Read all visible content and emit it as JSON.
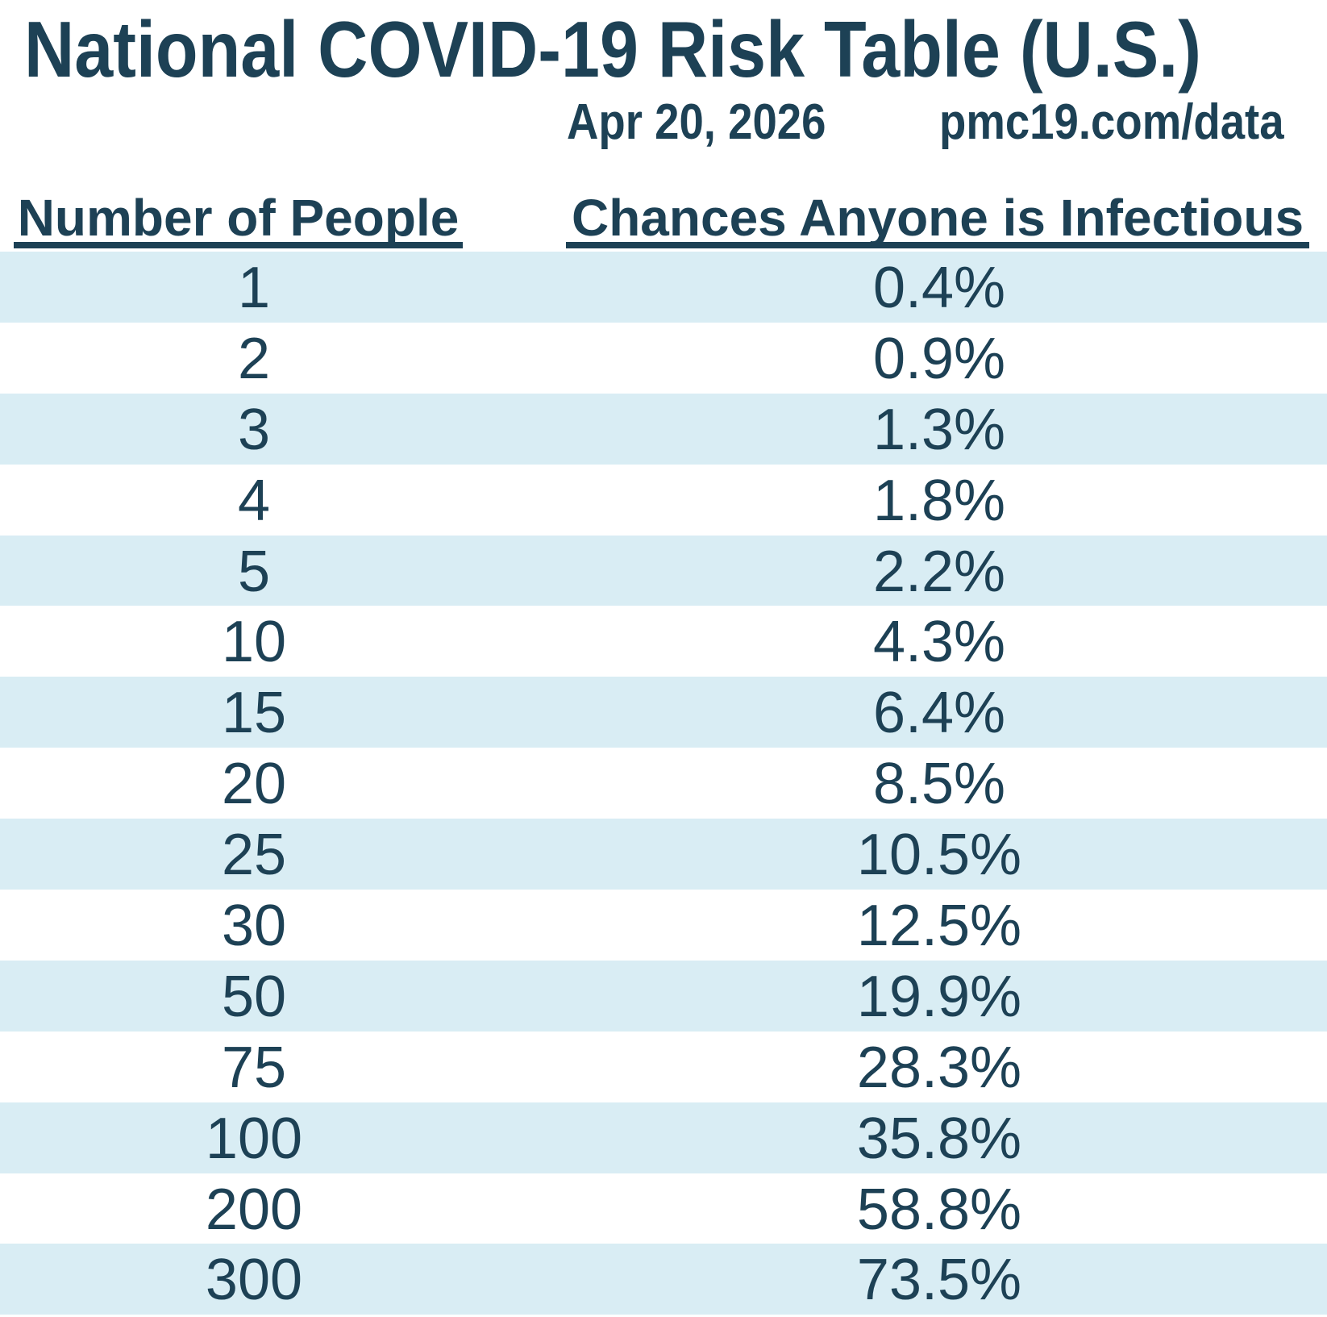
{
  "title": "National COVID-19 Risk Table (U.S.)",
  "date": "Apr 20, 2026",
  "source": "pmc19.com/data",
  "colors": {
    "navy_text": "#1d4155",
    "band_blue": "#d9edf4",
    "background": "#ffffff"
  },
  "table": {
    "columns": [
      "Number of People",
      "Chances Anyone is Infectious"
    ],
    "rows": [
      {
        "people": "1",
        "chance": "0.4%"
      },
      {
        "people": "2",
        "chance": "0.9%"
      },
      {
        "people": "3",
        "chance": "1.3%"
      },
      {
        "people": "4",
        "chance": "1.8%"
      },
      {
        "people": "5",
        "chance": "2.2%"
      },
      {
        "people": "10",
        "chance": "4.3%"
      },
      {
        "people": "15",
        "chance": "6.4%"
      },
      {
        "people": "20",
        "chance": "8.5%"
      },
      {
        "people": "25",
        "chance": "10.5%"
      },
      {
        "people": "30",
        "chance": "12.5%"
      },
      {
        "people": "50",
        "chance": "19.9%"
      },
      {
        "people": "75",
        "chance": "28.3%"
      },
      {
        "people": "100",
        "chance": "35.8%"
      },
      {
        "people": "200",
        "chance": "58.8%"
      },
      {
        "people": "300",
        "chance": "73.5%"
      }
    ]
  },
  "chart_data": {
    "type": "table",
    "title": "National COVID-19 Risk Table (U.S.)",
    "subtitle_date": "Apr 20, 2026",
    "source": "pmc19.com/data",
    "columns": [
      "Number of People",
      "Chances Anyone is Infectious"
    ],
    "categories": [
      1,
      2,
      3,
      4,
      5,
      10,
      15,
      20,
      25,
      30,
      50,
      75,
      100,
      200,
      300
    ],
    "values_percent": [
      0.4,
      0.9,
      1.3,
      1.8,
      2.2,
      4.3,
      6.4,
      8.5,
      10.5,
      12.5,
      19.9,
      28.3,
      35.8,
      58.8,
      73.5
    ],
    "layout_hints": {
      "row_striping": "alternating light blue and white",
      "grid": false
    }
  }
}
